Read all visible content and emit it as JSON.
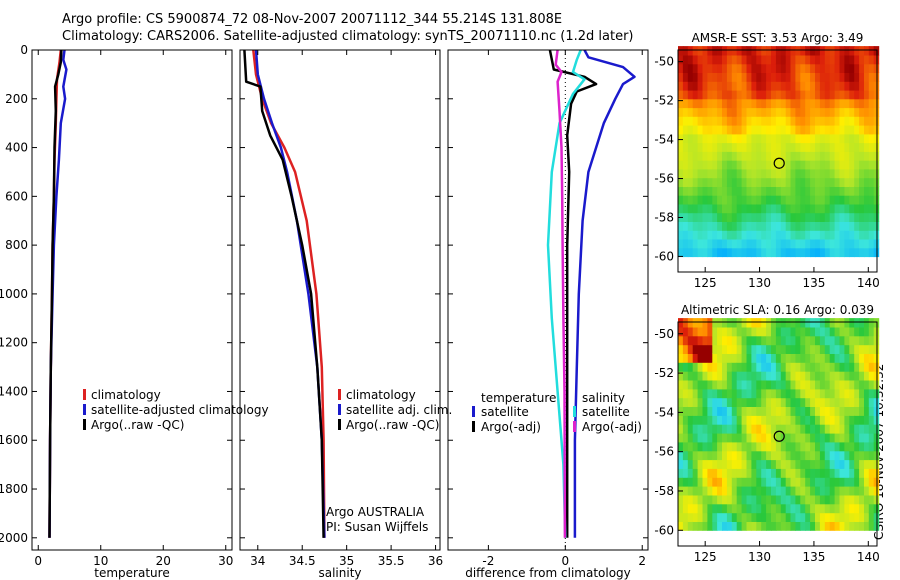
{
  "header": {
    "line1": "Argo profile: CS 5900874_72 08-Nov-2007 20071112_344 55.214S 131.808E",
    "line2": "Climatology: CARS2006. Satellite-adjusted climatology: synTS_20071110.nc (1.2d later)"
  },
  "footer": {
    "stamp": "CSIRO 18-Nov-2007 10:32:32"
  },
  "chart_data": [
    {
      "type": "line",
      "id": "temperature",
      "xlabel": "temperature",
      "xlim": [
        -1,
        31
      ],
      "xticks": [
        0,
        10,
        20,
        30
      ],
      "ylim": [
        2050,
        0
      ],
      "yticks": [
        0,
        200,
        400,
        600,
        800,
        1000,
        1200,
        1400,
        1600,
        1800,
        2000
      ],
      "legend": {
        "placement": "lower-middle",
        "entries": [
          "climatology",
          "satellite-adjusted climatology",
          "Argo(..raw -QC)"
        ]
      },
      "series": [
        {
          "name": "climatology",
          "color": "#dd2222",
          "points": [
            [
              3.6,
              0
            ],
            [
              3.4,
              50
            ],
            [
              3.0,
              120
            ],
            [
              2.9,
              200
            ],
            [
              2.8,
              300
            ],
            [
              2.6,
              450
            ],
            [
              2.5,
              600
            ],
            [
              2.3,
              800
            ],
            [
              2.2,
              1000
            ],
            [
              2.0,
              1300
            ],
            [
              1.9,
              1600
            ],
            [
              1.8,
              2000
            ]
          ]
        },
        {
          "name": "satellite-adjusted climatology",
          "color": "#1a1acc",
          "points": [
            [
              4.2,
              0
            ],
            [
              4.0,
              40
            ],
            [
              4.5,
              80
            ],
            [
              4.0,
              150
            ],
            [
              4.3,
              200
            ],
            [
              3.6,
              300
            ],
            [
              3.3,
              450
            ],
            [
              2.9,
              600
            ],
            [
              2.5,
              800
            ],
            [
              2.3,
              1000
            ],
            [
              2.0,
              1300
            ],
            [
              1.9,
              1600
            ],
            [
              1.8,
              2000
            ]
          ]
        },
        {
          "name": "Argo(..raw -QC)",
          "color": "#000000",
          "points": [
            [
              3.7,
              0
            ],
            [
              3.6,
              50
            ],
            [
              3.2,
              100
            ],
            [
              2.7,
              150
            ],
            [
              2.8,
              250
            ],
            [
              2.6,
              400
            ],
            [
              2.5,
              600
            ],
            [
              2.3,
              800
            ],
            [
              2.2,
              1000
            ],
            [
              2.0,
              1300
            ],
            [
              1.9,
              1600
            ],
            [
              1.8,
              2000
            ]
          ]
        }
      ]
    },
    {
      "type": "line",
      "id": "salinity",
      "xlabel": "salinity",
      "xlim": [
        33.8,
        36.05
      ],
      "xticks": [
        34,
        34.5,
        35,
        35.5,
        36
      ],
      "ylim": [
        2050,
        0
      ],
      "legend": {
        "placement": "lower-middle",
        "entries": [
          "climatology",
          "satellite adj. clim.",
          "Argo(..raw -QC)"
        ]
      },
      "annotations": [
        "Argo AUSTRALIA",
        "PI: Susan Wijffels"
      ],
      "series": [
        {
          "name": "climatology",
          "color": "#dd2222",
          "points": [
            [
              33.95,
              0
            ],
            [
              33.98,
              100
            ],
            [
              34.05,
              200
            ],
            [
              34.15,
              300
            ],
            [
              34.3,
              400
            ],
            [
              34.42,
              500
            ],
            [
              34.55,
              700
            ],
            [
              34.66,
              1000
            ],
            [
              34.72,
              1300
            ],
            [
              34.74,
              1600
            ],
            [
              34.75,
              2000
            ]
          ]
        },
        {
          "name": "satellite adj. clim.",
          "color": "#1a1acc",
          "points": [
            [
              33.98,
              0
            ],
            [
              34.0,
              100
            ],
            [
              34.07,
              200
            ],
            [
              34.16,
              300
            ],
            [
              34.26,
              400
            ],
            [
              34.33,
              500
            ],
            [
              34.44,
              700
            ],
            [
              34.57,
              1000
            ],
            [
              34.67,
              1300
            ],
            [
              34.72,
              1600
            ],
            [
              34.75,
              2000
            ]
          ]
        },
        {
          "name": "Argo(..raw -QC)",
          "color": "#000000",
          "points": [
            [
              33.85,
              0
            ],
            [
              33.87,
              130
            ],
            [
              34.03,
              150
            ],
            [
              34.05,
              250
            ],
            [
              34.14,
              350
            ],
            [
              34.28,
              450
            ],
            [
              34.38,
              600
            ],
            [
              34.5,
              800
            ],
            [
              34.6,
              1000
            ],
            [
              34.67,
              1300
            ],
            [
              34.72,
              1600
            ],
            [
              34.74,
              2000
            ]
          ]
        }
      ]
    },
    {
      "type": "line",
      "id": "difference",
      "xlabel": "difference from climatology",
      "xlim": [
        -3.05,
        2.15
      ],
      "xticks": [
        -2,
        0,
        2
      ],
      "ylim": [
        2050,
        0
      ],
      "legend": {
        "placement": "lower",
        "temperature_title": "temperature",
        "salinity_title": "salinity",
        "entries": [
          "satellite",
          "Argo(-adj)",
          "satellite",
          "Argo(-adj)"
        ]
      },
      "series": [
        {
          "name": "temperature satellite",
          "color": "#1a1acc",
          "points": [
            [
              0.5,
              0
            ],
            [
              0.6,
              30
            ],
            [
              1.5,
              70
            ],
            [
              1.8,
              110
            ],
            [
              1.5,
              140
            ],
            [
              1.3,
              200
            ],
            [
              1.0,
              300
            ],
            [
              0.8,
              400
            ],
            [
              0.6,
              500
            ],
            [
              0.45,
              700
            ],
            [
              0.35,
              1000
            ],
            [
              0.3,
              1300
            ],
            [
              0.25,
              1600
            ],
            [
              0.25,
              2000
            ]
          ]
        },
        {
          "name": "temperature Argo(-adj)",
          "color": "#000000",
          "points": [
            [
              -0.4,
              0
            ],
            [
              -0.3,
              80
            ],
            [
              0.5,
              110
            ],
            [
              0.8,
              140
            ],
            [
              0.3,
              170
            ],
            [
              0.15,
              220
            ],
            [
              0.05,
              350
            ],
            [
              0.1,
              500
            ],
            [
              0.05,
              800
            ],
            [
              0.05,
              1100
            ],
            [
              0.05,
              1500
            ],
            [
              0.05,
              2000
            ]
          ]
        },
        {
          "name": "salinity satellite",
          "color": "#22dddd",
          "points": [
            [
              0.4,
              0
            ],
            [
              0.3,
              40
            ],
            [
              0.2,
              90
            ],
            [
              0.5,
              120
            ],
            [
              0.2,
              180
            ],
            [
              -0.15,
              300
            ],
            [
              -0.35,
              500
            ],
            [
              -0.45,
              800
            ],
            [
              -0.35,
              1100
            ],
            [
              -0.2,
              1400
            ],
            [
              -0.05,
              1700
            ],
            [
              0.0,
              2000
            ]
          ]
        },
        {
          "name": "salinity Argo(-adj)",
          "color": "#dd22cc",
          "points": [
            [
              -0.2,
              0
            ],
            [
              -0.25,
              60
            ],
            [
              -0.1,
              90
            ],
            [
              -0.2,
              130
            ],
            [
              -0.15,
              250
            ],
            [
              -0.1,
              400
            ],
            [
              -0.08,
              600
            ],
            [
              -0.07,
              800
            ],
            [
              -0.05,
              1100
            ],
            [
              -0.02,
              1400
            ],
            [
              -0.01,
              2000
            ]
          ]
        }
      ]
    },
    {
      "type": "heatmap",
      "id": "sst",
      "title": "AMSR-E SST: 3.53 Argo: 3.49",
      "xlim": [
        122.5,
        140.8
      ],
      "xticks": [
        125,
        130,
        135,
        140
      ],
      "ylim": [
        -60.8,
        -49.4
      ],
      "yticks": [
        -50,
        -52,
        -54,
        -56,
        -58,
        -60
      ],
      "data_lat_range": [
        -60,
        -49.4
      ],
      "marker": {
        "lon": 131.808,
        "lat": -55.214
      }
    },
    {
      "type": "heatmap",
      "id": "sla",
      "title": "Altimetric SLA: 0.16 Argo: 0.039",
      "xlim": [
        122.5,
        140.8
      ],
      "xticks": [
        125,
        130,
        135,
        140
      ],
      "ylim": [
        -60.8,
        -49.4
      ],
      "yticks": [
        -50,
        -52,
        -54,
        -56,
        -58,
        -60
      ],
      "data_lat_range": [
        -60,
        -49.4
      ],
      "marker": {
        "lon": 131.808,
        "lat": -55.214
      }
    }
  ]
}
